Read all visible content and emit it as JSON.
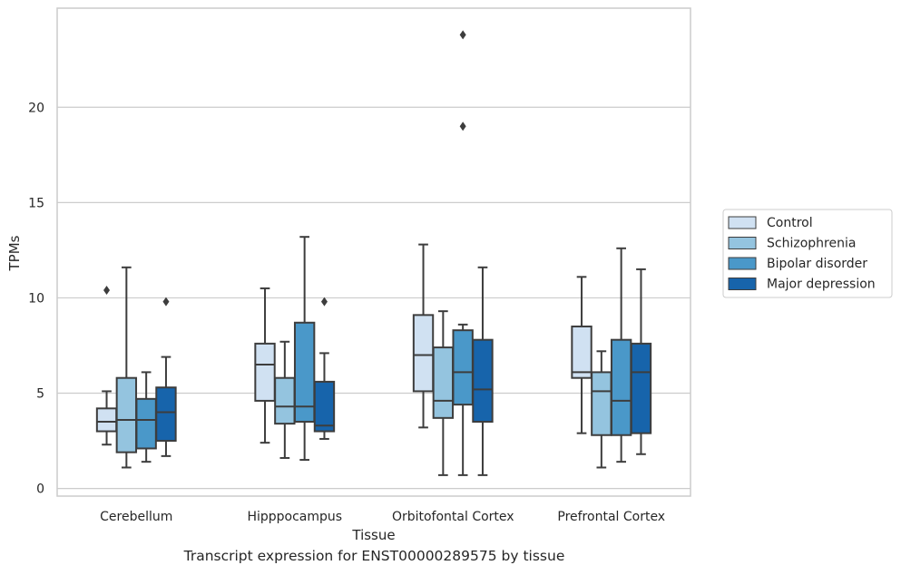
{
  "caption": "Transcript expression for ENST00000289575 by tissue",
  "chart_data": {
    "type": "box",
    "xlabel": "Tissue",
    "ylabel": "TPMs",
    "ylim": [
      -0.4,
      25.2
    ],
    "yticks": [
      0,
      5,
      10,
      15,
      20
    ],
    "grid": "horizontal",
    "legend_position": "outside-right",
    "categories": [
      "Cerebellum",
      "Hipppocampus",
      "Orbitofontal Cortex",
      "Prefrontal Cortex"
    ],
    "series": [
      {
        "name": "Control",
        "color": "#d0e1f2",
        "boxes": [
          {
            "whislo": 2.3,
            "q1": 3.0,
            "med": 3.5,
            "q3": 4.2,
            "whishi": 5.1,
            "fliers": [
              10.4
            ]
          },
          {
            "whislo": 2.4,
            "q1": 4.6,
            "med": 6.5,
            "q3": 7.6,
            "whishi": 10.5,
            "fliers": []
          },
          {
            "whislo": 3.2,
            "q1": 5.1,
            "med": 7.0,
            "q3": 9.1,
            "whishi": 12.8,
            "fliers": []
          },
          {
            "whislo": 2.9,
            "q1": 5.8,
            "med": 6.1,
            "q3": 8.5,
            "whishi": 11.1,
            "fliers": []
          }
        ]
      },
      {
        "name": "Schizophrenia",
        "color": "#94c4df",
        "boxes": [
          {
            "whislo": 1.1,
            "q1": 1.9,
            "med": 3.6,
            "q3": 5.8,
            "whishi": 11.6,
            "fliers": []
          },
          {
            "whislo": 1.6,
            "q1": 3.4,
            "med": 4.3,
            "q3": 5.8,
            "whishi": 7.7,
            "fliers": []
          },
          {
            "whislo": 0.7,
            "q1": 3.7,
            "med": 4.6,
            "q3": 7.4,
            "whishi": 9.3,
            "fliers": []
          },
          {
            "whislo": 1.1,
            "q1": 2.8,
            "med": 5.1,
            "q3": 6.1,
            "whishi": 7.2,
            "fliers": []
          }
        ]
      },
      {
        "name": "Bipolar disorder",
        "color": "#4a98c9",
        "boxes": [
          {
            "whislo": 1.4,
            "q1": 2.1,
            "med": 3.6,
            "q3": 4.7,
            "whishi": 6.1,
            "fliers": []
          },
          {
            "whislo": 1.5,
            "q1": 3.5,
            "med": 4.3,
            "q3": 8.7,
            "whishi": 13.2,
            "fliers": []
          },
          {
            "whislo": 0.7,
            "q1": 4.4,
            "med": 6.1,
            "q3": 8.3,
            "whishi": 8.6,
            "fliers": [
              19.0,
              23.8
            ]
          },
          {
            "whislo": 1.4,
            "q1": 2.8,
            "med": 4.6,
            "q3": 7.8,
            "whishi": 12.6,
            "fliers": []
          }
        ]
      },
      {
        "name": "Major depression",
        "color": "#1764ab",
        "boxes": [
          {
            "whislo": 1.7,
            "q1": 2.5,
            "med": 4.0,
            "q3": 5.3,
            "whishi": 6.9,
            "fliers": [
              9.8
            ]
          },
          {
            "whislo": 2.6,
            "q1": 3.0,
            "med": 3.3,
            "q3": 5.6,
            "whishi": 7.1,
            "fliers": [
              9.8
            ]
          },
          {
            "whislo": 0.7,
            "q1": 3.5,
            "med": 5.2,
            "q3": 7.8,
            "whishi": 11.6,
            "fliers": []
          },
          {
            "whislo": 1.8,
            "q1": 2.9,
            "med": 6.1,
            "q3": 7.6,
            "whishi": 11.5,
            "fliers": []
          }
        ]
      }
    ]
  }
}
